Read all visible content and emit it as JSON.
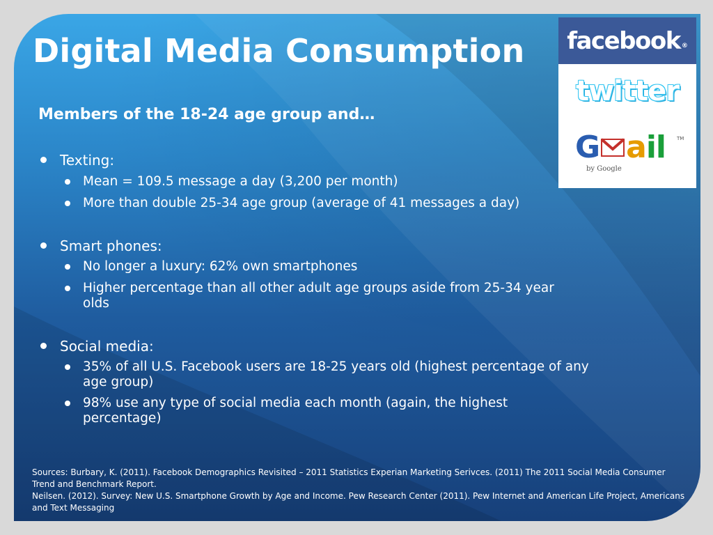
{
  "slide": {
    "title": "Digital Media Consumption",
    "subtitle": "Members of the 18-24 age group and…",
    "sections": [
      {
        "label": "Texting:",
        "items": [
          "Mean = 109.5 message a day (3,200 per month)",
          "More than double 25-34 age group (average of 41 messages a day)"
        ]
      },
      {
        "label": "Smart phones:",
        "items": [
          "No longer a luxury: 62% own smartphones",
          "Higher percentage than all other adult age groups aside from 25-34 year olds"
        ]
      },
      {
        "label": "Social media:",
        "items": [
          "35% of all U.S. Facebook users are 18-25 years old (highest percentage of any age group)",
          "98% use any type of social media each month (again, the highest percentage)"
        ]
      }
    ],
    "sources": [
      "Sources: Burbary, K. (2011). Facebook Demographics Revisited – 2011 Statistics Experian Marketing Serivces. (2011) The 2011 Social Media Consumer Trend and Benchmark Report.",
      "Neilsen. (2012). Survey: New U.S. Smartphone Growth by Age and Income. Pew Research Center (2011). Pew Internet and American Life Project, Americans and Text Messaging"
    ]
  },
  "logos": {
    "facebook": {
      "text": "facebook",
      "mark": "®"
    },
    "twitter": {
      "text": "twitter"
    },
    "gmail": {
      "g": "G",
      "a": "a",
      "i": "i",
      "l": "l",
      "by": "by Google",
      "tm": "TM"
    }
  },
  "colors": {
    "background_top": "#3aa6e6",
    "background_bottom": "#17407a",
    "facebook_blue": "#3b5998",
    "twitter_blue": "#33c5f2",
    "text": "#ffffff"
  }
}
